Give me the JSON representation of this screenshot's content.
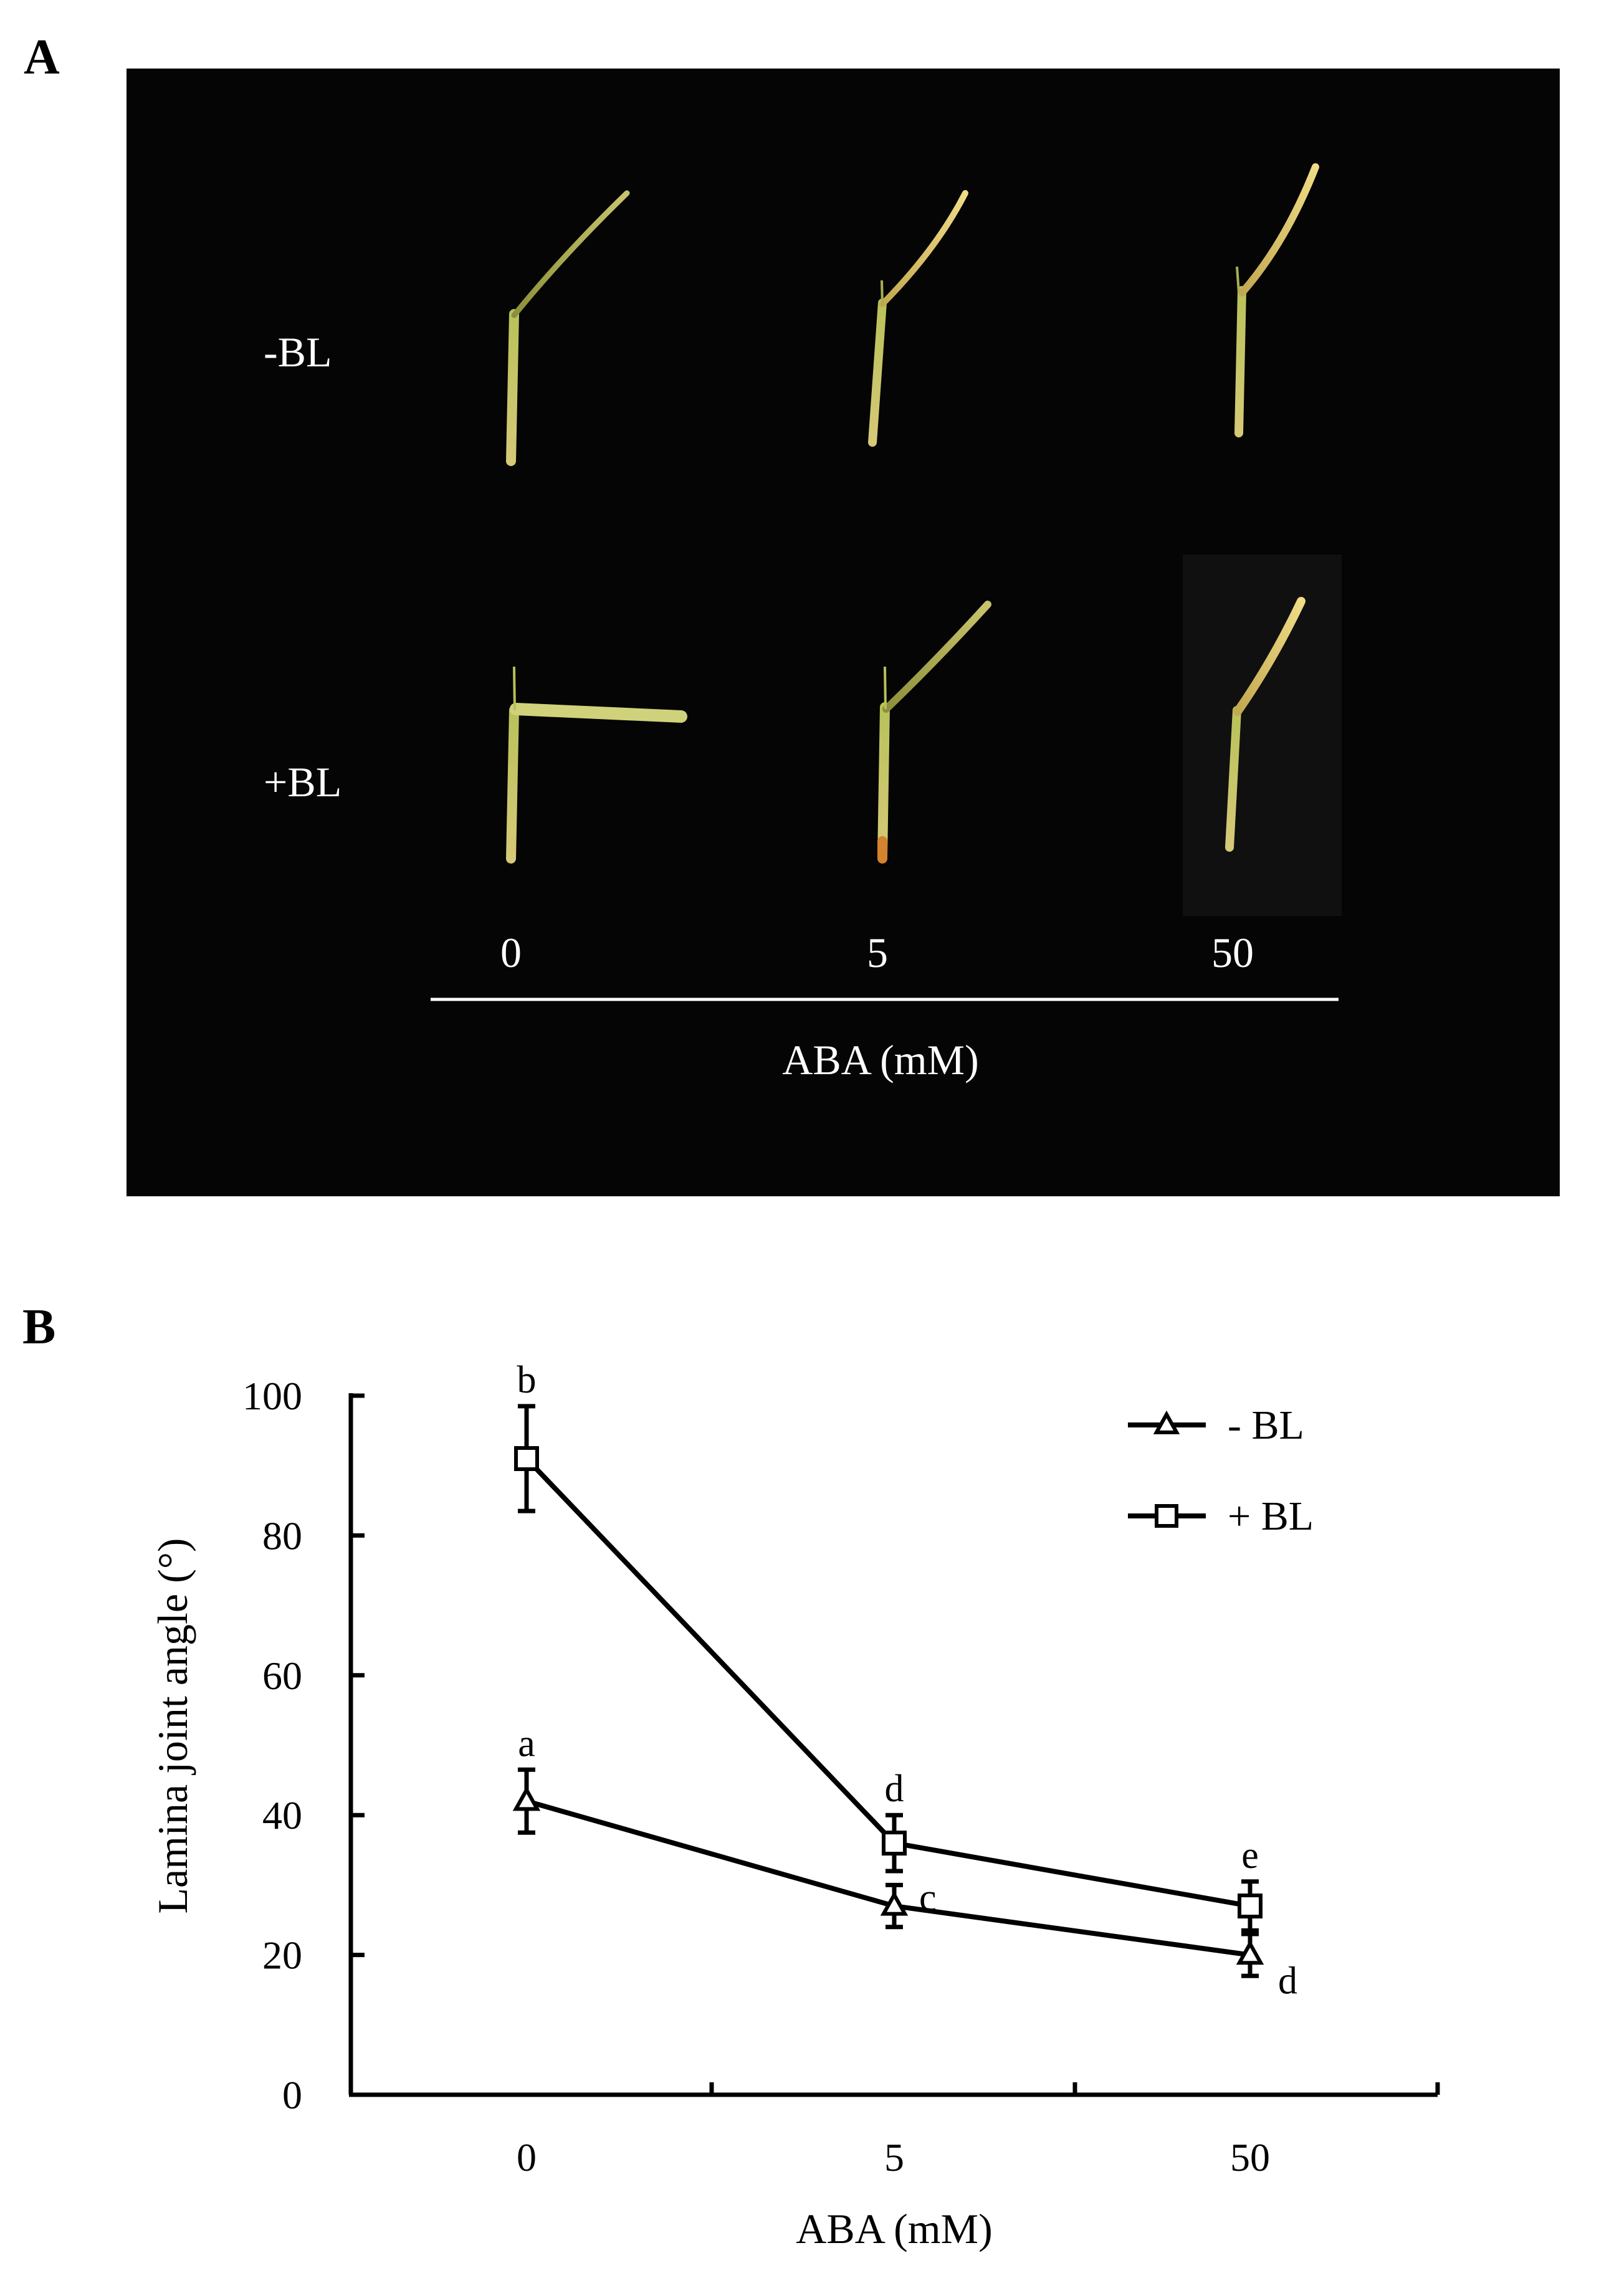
{
  "panels": {
    "a_label": "A",
    "b_label": "B"
  },
  "photo": {
    "row_labels": [
      "-BL",
      "+BL"
    ],
    "dose_labels": [
      "0",
      "5",
      "50"
    ],
    "axis_title": "ABA (mM)"
  },
  "chart_data": {
    "type": "line",
    "categories": [
      "0",
      "5",
      "50"
    ],
    "xlabel": "ABA (mM)",
    "ylabel": "Lamina joint angle (°)",
    "ylim": [
      0,
      100
    ],
    "yticks": [
      "0",
      "20",
      "40",
      "60",
      "80",
      "100"
    ],
    "legend_position": "top-right",
    "series": [
      {
        "name": "- BL",
        "marker": "triangle",
        "values": [
          42,
          27,
          20
        ],
        "errors": [
          4.5,
          3,
          3
        ],
        "letters": [
          "a",
          "c",
          "d"
        ]
      },
      {
        "name": "+ BL",
        "marker": "square",
        "values": [
          91,
          36,
          27
        ],
        "errors": [
          7.5,
          4,
          3.5
        ],
        "letters": [
          "b",
          "d",
          "e"
        ]
      }
    ]
  }
}
